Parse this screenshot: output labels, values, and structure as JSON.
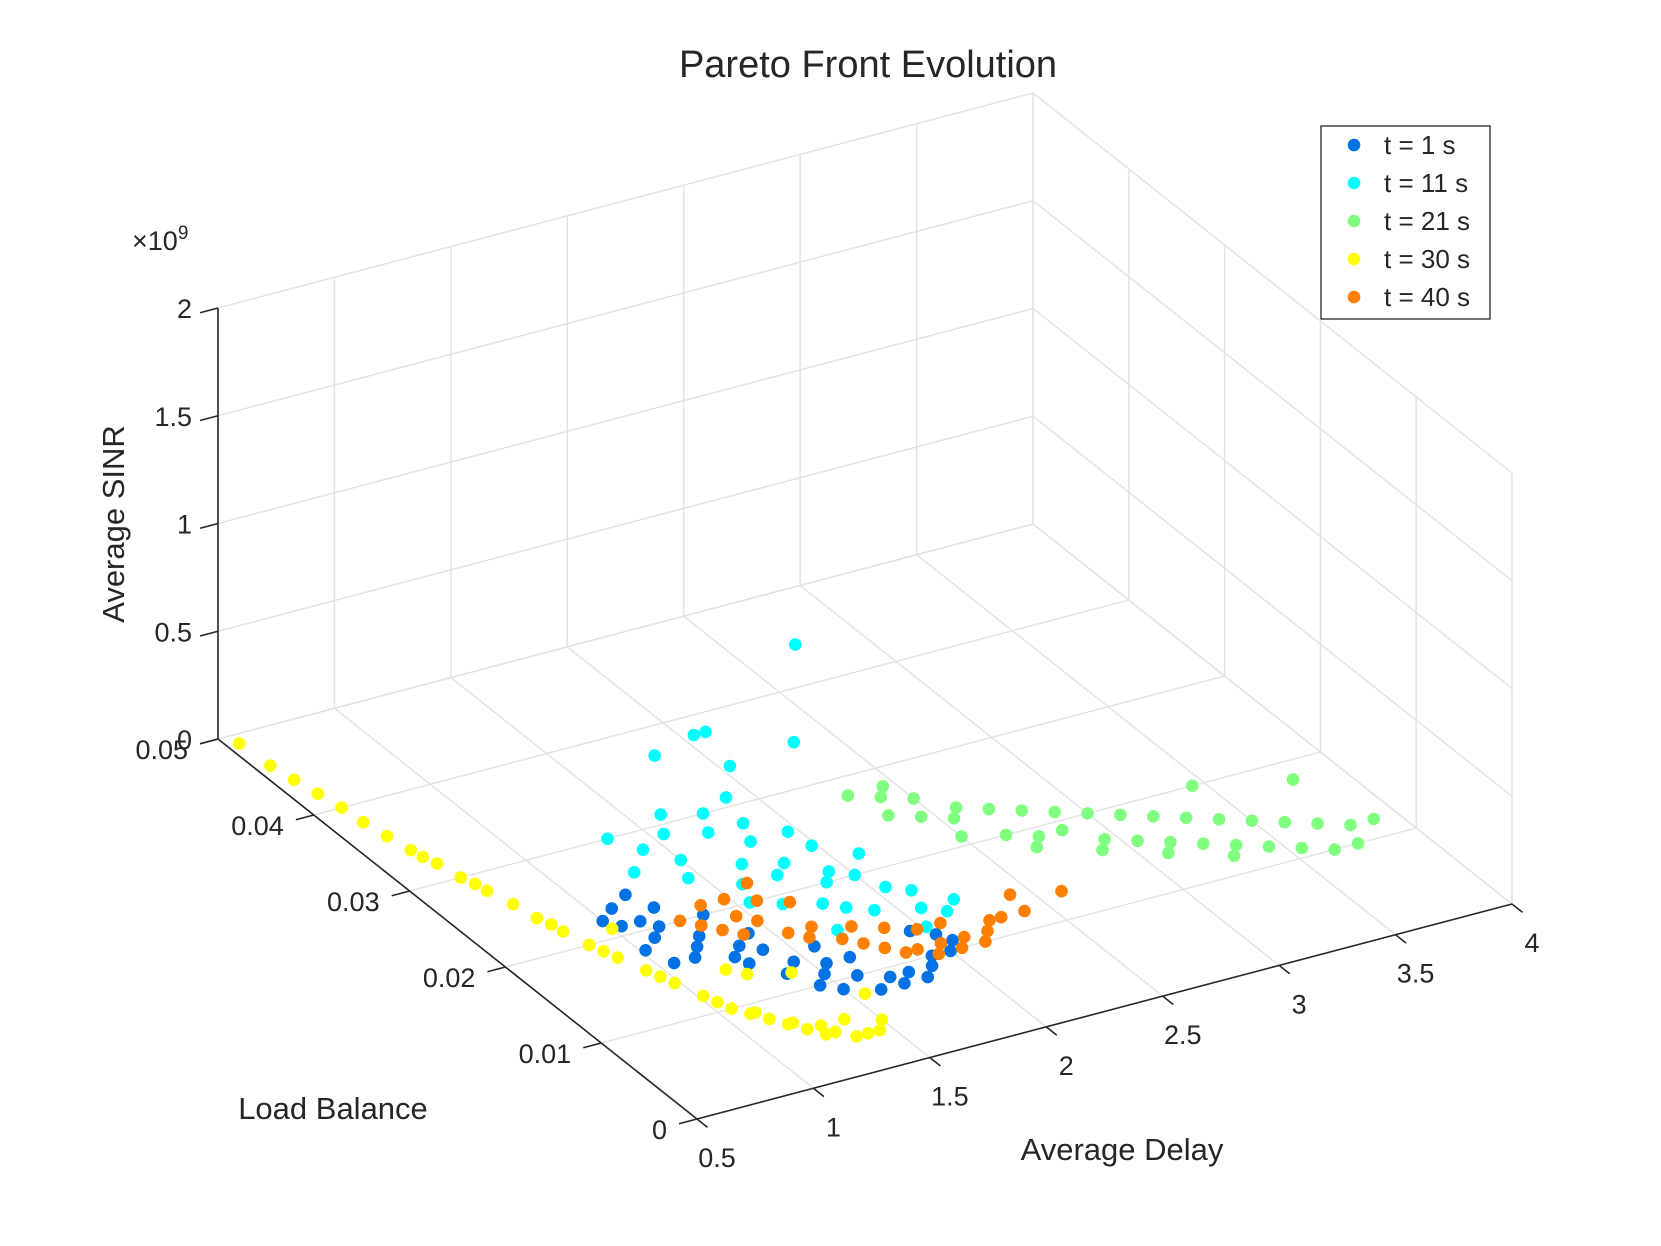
{
  "chart_data": {
    "type": "scatter",
    "title": "Pareto Front Evolution",
    "xlabel": "Average Delay",
    "ylabel": "Load Balance",
    "zlabel": "Average SINR",
    "xlim": [
      0.5,
      4
    ],
    "ylim": [
      0,
      0.05
    ],
    "zlim": [
      0,
      2000000000
    ],
    "xticks": [
      "0.5",
      "1",
      "1.5",
      "2",
      "2.5",
      "3",
      "3.5",
      "4"
    ],
    "yticks": [
      "0",
      "0.01",
      "0.02",
      "0.03",
      "0.04",
      "0.05"
    ],
    "zticks": [
      "0",
      "0.5",
      "1",
      "1.5",
      "2"
    ],
    "zexponent_base": "×10",
    "zexponent_power": "9",
    "grid": true,
    "legend_position": "top-right",
    "series": [
      {
        "name": "t = 1 s",
        "color": "#0072e3",
        "points": [
          [
            1.0,
            0.022,
            0
          ],
          [
            1.04,
            0.021,
            0
          ],
          [
            1.08,
            0.023,
            0
          ],
          [
            1.02,
            0.018,
            0
          ],
          [
            1.1,
            0.019,
            0
          ],
          [
            1.12,
            0.021,
            0
          ],
          [
            1.16,
            0.02,
            0
          ],
          [
            1.2,
            0.017,
            0
          ],
          [
            1.15,
            0.016,
            0
          ],
          [
            1.25,
            0.018,
            0
          ],
          [
            1.3,
            0.019,
            0
          ],
          [
            1.28,
            0.015,
            0
          ],
          [
            1.34,
            0.016,
            0
          ],
          [
            1.4,
            0.015,
            0
          ],
          [
            1.38,
            0.012,
            0
          ],
          [
            1.45,
            0.013,
            0
          ],
          [
            1.5,
            0.011,
            0
          ],
          [
            1.55,
            0.012,
            0
          ],
          [
            1.5,
            0.009,
            0
          ],
          [
            1.6,
            0.01,
            0
          ],
          [
            1.62,
            0.008,
            0
          ],
          [
            1.7,
            0.009,
            0
          ],
          [
            1.72,
            0.008,
            0
          ],
          [
            1.78,
            0.009,
            0
          ],
          [
            1.82,
            0.008,
            0
          ],
          [
            1.88,
            0.009,
            0
          ],
          [
            1.92,
            0.01,
            0
          ],
          [
            2.02,
            0.012,
            0
          ],
          [
            2.05,
            0.011,
            0
          ],
          [
            1.35,
            0.02,
            0
          ],
          [
            1.22,
            0.022,
            0
          ],
          [
            1.06,
            0.016,
            0
          ],
          [
            1.42,
            0.017,
            0
          ],
          [
            1.58,
            0.014,
            0
          ],
          [
            1.65,
            0.012,
            0
          ],
          [
            1.95,
            0.013,
            0
          ],
          [
            2.0,
            0.01,
            0
          ],
          [
            1.3,
            0.014,
            0
          ],
          [
            1.44,
            0.01,
            0
          ],
          [
            1.18,
            0.024,
            0
          ]
        ]
      },
      {
        "name": "t = 11 s",
        "color": "#00ffff",
        "points": [
          [
            1.3,
            0.026,
            0
          ],
          [
            1.35,
            0.03,
            0
          ],
          [
            1.42,
            0.028,
            0
          ],
          [
            1.5,
            0.026,
            0
          ],
          [
            1.55,
            0.029,
            0
          ],
          [
            1.62,
            0.031,
            0
          ],
          [
            1.7,
            0.028,
            0
          ],
          [
            1.76,
            0.03,
            0
          ],
          [
            1.85,
            0.028,
            0
          ],
          [
            1.9,
            0.031,
            0
          ],
          [
            1.96,
            0.026,
            0
          ],
          [
            1.6,
            0.022,
            0
          ],
          [
            1.68,
            0.024,
            0
          ],
          [
            1.75,
            0.022,
            0
          ],
          [
            1.82,
            0.023,
            0
          ],
          [
            1.88,
            0.02,
            0
          ],
          [
            1.93,
            0.021,
            0
          ],
          [
            2.0,
            0.02,
            0
          ],
          [
            2.05,
            0.018,
            0
          ],
          [
            1.78,
            0.018,
            0
          ],
          [
            1.84,
            0.017,
            0
          ],
          [
            1.92,
            0.016,
            0
          ],
          [
            2.08,
            0.015,
            0
          ],
          [
            2.15,
            0.014,
            0
          ],
          [
            2.22,
            0.015,
            0
          ],
          [
            1.72,
            0.015,
            0
          ],
          [
            1.65,
            0.019,
            0
          ],
          [
            1.98,
            0.024,
            0
          ],
          [
            2.1,
            0.022,
            0
          ],
          [
            1.45,
            0.024,
            0
          ],
          [
            1.55,
            0.02,
            0
          ],
          [
            2.02,
            0.013,
            0
          ],
          [
            2.12,
            0.017,
            0
          ],
          [
            1.8,
            0.026,
            0
          ],
          [
            2.05,
            0.038,
            0
          ],
          [
            2.1,
            0.038,
            0
          ],
          [
            1.84,
            0.037,
            0
          ],
          [
            2.04,
            0.034,
            0
          ],
          [
            2.15,
            0.03,
            220000000
          ],
          [
            2.28,
            0.033,
            530000000
          ]
        ]
      },
      {
        "name": "t = 21 s",
        "color": "#80ff80",
        "points": [
          [
            2.3,
            0.028,
            0
          ],
          [
            2.4,
            0.027,
            0
          ],
          [
            2.5,
            0.026,
            0
          ],
          [
            2.6,
            0.024,
            0
          ],
          [
            2.7,
            0.023,
            0
          ],
          [
            2.8,
            0.022,
            0
          ],
          [
            2.9,
            0.021,
            0
          ],
          [
            3.0,
            0.02,
            0
          ],
          [
            3.1,
            0.019,
            0
          ],
          [
            3.2,
            0.018,
            0
          ],
          [
            3.3,
            0.017,
            0
          ],
          [
            3.4,
            0.016,
            0
          ],
          [
            3.5,
            0.015,
            0
          ],
          [
            3.6,
            0.014,
            0
          ],
          [
            3.7,
            0.013,
            0
          ],
          [
            3.8,
            0.012,
            0
          ],
          [
            3.9,
            0.012,
            0
          ],
          [
            2.35,
            0.025,
            0
          ],
          [
            2.45,
            0.024,
            0
          ],
          [
            2.55,
            0.023,
            0
          ],
          [
            2.65,
            0.02,
            0
          ],
          [
            2.75,
            0.019,
            0
          ],
          [
            2.85,
            0.019,
            0
          ],
          [
            2.95,
            0.017,
            0
          ],
          [
            3.05,
            0.016,
            0
          ],
          [
            3.15,
            0.015,
            0
          ],
          [
            3.25,
            0.014,
            0
          ],
          [
            3.35,
            0.013,
            0
          ],
          [
            3.45,
            0.012,
            0
          ],
          [
            3.55,
            0.011,
            0
          ],
          [
            3.65,
            0.01,
            0
          ],
          [
            3.75,
            0.01,
            0
          ],
          [
            2.5,
            0.021,
            0
          ],
          [
            2.7,
            0.018,
            0
          ],
          [
            2.9,
            0.016,
            0
          ],
          [
            3.1,
            0.014,
            0
          ],
          [
            3.3,
            0.012,
            0
          ],
          [
            2.45,
            0.028,
            0
          ],
          [
            3.8,
            0.018,
            0
          ],
          [
            3.45,
            0.02,
            0
          ]
        ]
      },
      {
        "name": "t = 30 s",
        "color": "#ffff00",
        "points": [
          [
            0.55,
            0.049,
            0
          ],
          [
            0.56,
            0.046,
            0
          ],
          [
            0.58,
            0.044,
            0
          ],
          [
            0.6,
            0.042,
            0
          ],
          [
            0.62,
            0.04,
            0
          ],
          [
            0.63,
            0.038,
            0
          ],
          [
            0.65,
            0.036,
            0
          ],
          [
            0.67,
            0.034,
            0
          ],
          [
            0.7,
            0.032,
            0
          ],
          [
            0.72,
            0.03,
            0
          ],
          [
            0.75,
            0.028,
            0
          ],
          [
            0.78,
            0.026,
            0
          ],
          [
            0.8,
            0.024,
            0
          ],
          [
            0.83,
            0.022,
            0
          ],
          [
            0.86,
            0.02,
            0
          ],
          [
            0.9,
            0.018,
            0
          ],
          [
            0.94,
            0.016,
            0
          ],
          [
            0.98,
            0.014,
            0
          ],
          [
            1.02,
            0.012,
            0
          ],
          [
            1.06,
            0.01,
            0
          ],
          [
            1.1,
            0.009,
            0
          ],
          [
            1.14,
            0.008,
            0
          ],
          [
            1.18,
            0.007,
            0
          ],
          [
            1.22,
            0.006,
            0
          ],
          [
            1.26,
            0.005,
            0
          ],
          [
            1.3,
            0.005,
            0
          ],
          [
            1.35,
            0.004,
            0
          ],
          [
            1.4,
            0.004,
            0
          ],
          [
            1.45,
            0.004,
            0
          ],
          [
            1.5,
            0.005,
            0
          ],
          [
            0.68,
            0.033,
            0
          ],
          [
            0.74,
            0.029,
            0
          ],
          [
            0.82,
            0.023,
            0
          ],
          [
            0.88,
            0.019,
            0
          ],
          [
            0.96,
            0.015,
            0
          ],
          [
            1.04,
            0.011,
            0
          ],
          [
            1.12,
            0.009,
            0
          ],
          [
            1.2,
            0.007,
            0
          ],
          [
            1.28,
            0.006,
            0
          ],
          [
            1.38,
            0.006,
            0
          ],
          [
            1.2,
            0.014,
            0
          ],
          [
            1.25,
            0.013,
            0
          ],
          [
            1.4,
            0.012,
            0
          ],
          [
            1.55,
            0.008,
            0
          ],
          [
            1.0,
            0.021,
            0
          ]
        ]
      },
      {
        "name": "t = 40 s",
        "color": "#ff7f00",
        "points": [
          [
            1.25,
            0.02,
            0
          ],
          [
            1.3,
            0.019,
            0
          ],
          [
            1.35,
            0.018,
            0
          ],
          [
            1.4,
            0.017,
            0
          ],
          [
            1.45,
            0.019,
            0
          ],
          [
            1.5,
            0.018,
            0
          ],
          [
            1.55,
            0.016,
            0
          ],
          [
            1.6,
            0.015,
            0
          ],
          [
            1.65,
            0.016,
            0
          ],
          [
            1.7,
            0.014,
            0
          ],
          [
            1.75,
            0.013,
            0
          ],
          [
            1.8,
            0.012,
            0
          ],
          [
            1.85,
            0.011,
            0
          ],
          [
            1.9,
            0.011,
            0
          ],
          [
            1.95,
            0.01,
            0
          ],
          [
            2.0,
            0.011,
            0
          ],
          [
            2.05,
            0.01,
            0
          ],
          [
            2.1,
            0.011,
            0
          ],
          [
            2.15,
            0.01,
            0
          ],
          [
            2.2,
            0.011,
            0
          ],
          [
            2.25,
            0.012,
            0
          ],
          [
            2.3,
            0.012,
            0
          ],
          [
            1.38,
            0.021,
            0
          ],
          [
            1.48,
            0.021,
            0
          ],
          [
            1.58,
            0.02,
            0
          ],
          [
            1.68,
            0.019,
            0
          ],
          [
            1.78,
            0.015,
            0
          ],
          [
            1.88,
            0.014,
            0
          ],
          [
            1.98,
            0.013,
            0
          ],
          [
            2.08,
            0.013,
            0
          ],
          [
            2.4,
            0.012,
            0
          ],
          [
            2.42,
            0.014,
            0
          ],
          [
            2.6,
            0.013,
            0
          ],
          [
            1.62,
            0.022,
            0
          ]
        ]
      }
    ]
  }
}
